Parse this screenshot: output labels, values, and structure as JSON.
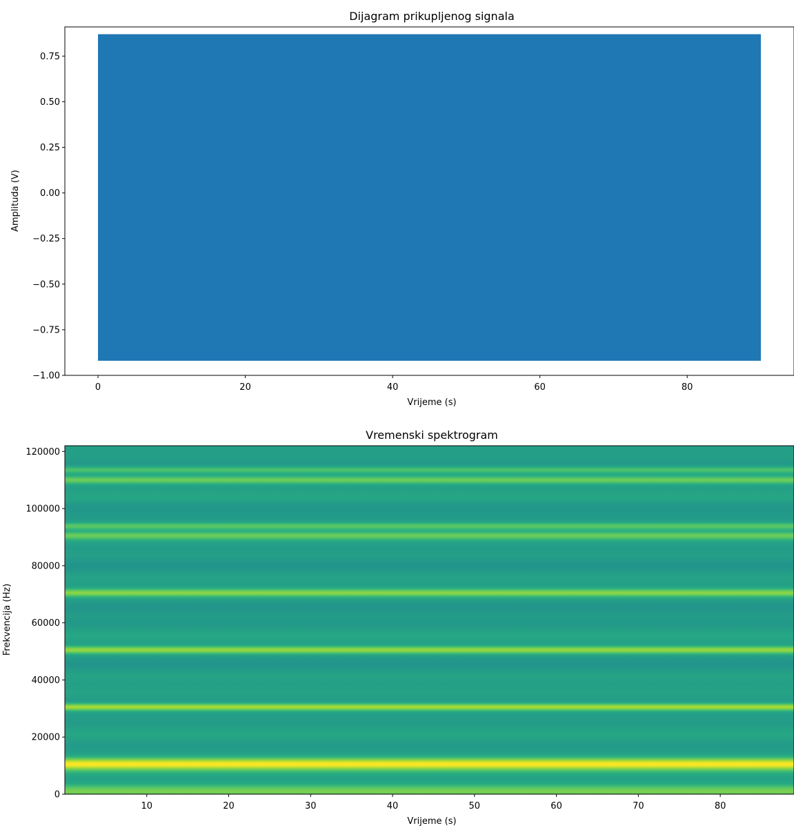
{
  "chart_data": [
    {
      "type": "line",
      "title": "Dijagram prikupljenog signala",
      "xlabel": "Vrijeme (s)",
      "ylabel": "Amplituda (V)",
      "xlim": [
        -4.5,
        94.5
      ],
      "ylim": [
        -1.0,
        0.91
      ],
      "xticks": [
        0,
        20,
        40,
        60,
        80
      ],
      "yticks": [
        -1.0,
        -0.75,
        -0.5,
        -0.25,
        0.0,
        0.25,
        0.5,
        0.75
      ],
      "ytick_labels": [
        "−1.00",
        "−0.75",
        "−0.50",
        "−0.25",
        "0.00",
        "0.25",
        "0.50",
        "0.75"
      ],
      "grid": false,
      "series": [
        {
          "color": "#1f77b4",
          "x_range": [
            0,
            90
          ],
          "envelope_max": 0.87,
          "envelope_min": -0.92
        }
      ]
    },
    {
      "type": "heatmap",
      "title": "Vremenski spektrogram",
      "xlabel": "Vrijeme (s)",
      "ylabel": "Frekvencija (Hz)",
      "xlim": [
        0,
        89
      ],
      "ylim": [
        0,
        122000
      ],
      "xticks": [
        10,
        20,
        30,
        40,
        50,
        60,
        70,
        80
      ],
      "yticks": [
        0,
        20000,
        40000,
        60000,
        80000,
        100000,
        120000
      ],
      "colormap": "viridis",
      "grid": false,
      "frequency_bands": [
        {
          "freq": 1000,
          "intensity": 0.8
        },
        {
          "freq": 10500,
          "intensity": 1.0
        },
        {
          "freq": 30500,
          "intensity": 0.88
        },
        {
          "freq": 50500,
          "intensity": 0.85
        },
        {
          "freq": 70500,
          "intensity": 0.83
        },
        {
          "freq": 90500,
          "intensity": 0.78
        },
        {
          "freq": 93800,
          "intensity": 0.75
        },
        {
          "freq": 110000,
          "intensity": 0.78
        },
        {
          "freq": 113500,
          "intensity": 0.72
        }
      ]
    }
  ]
}
